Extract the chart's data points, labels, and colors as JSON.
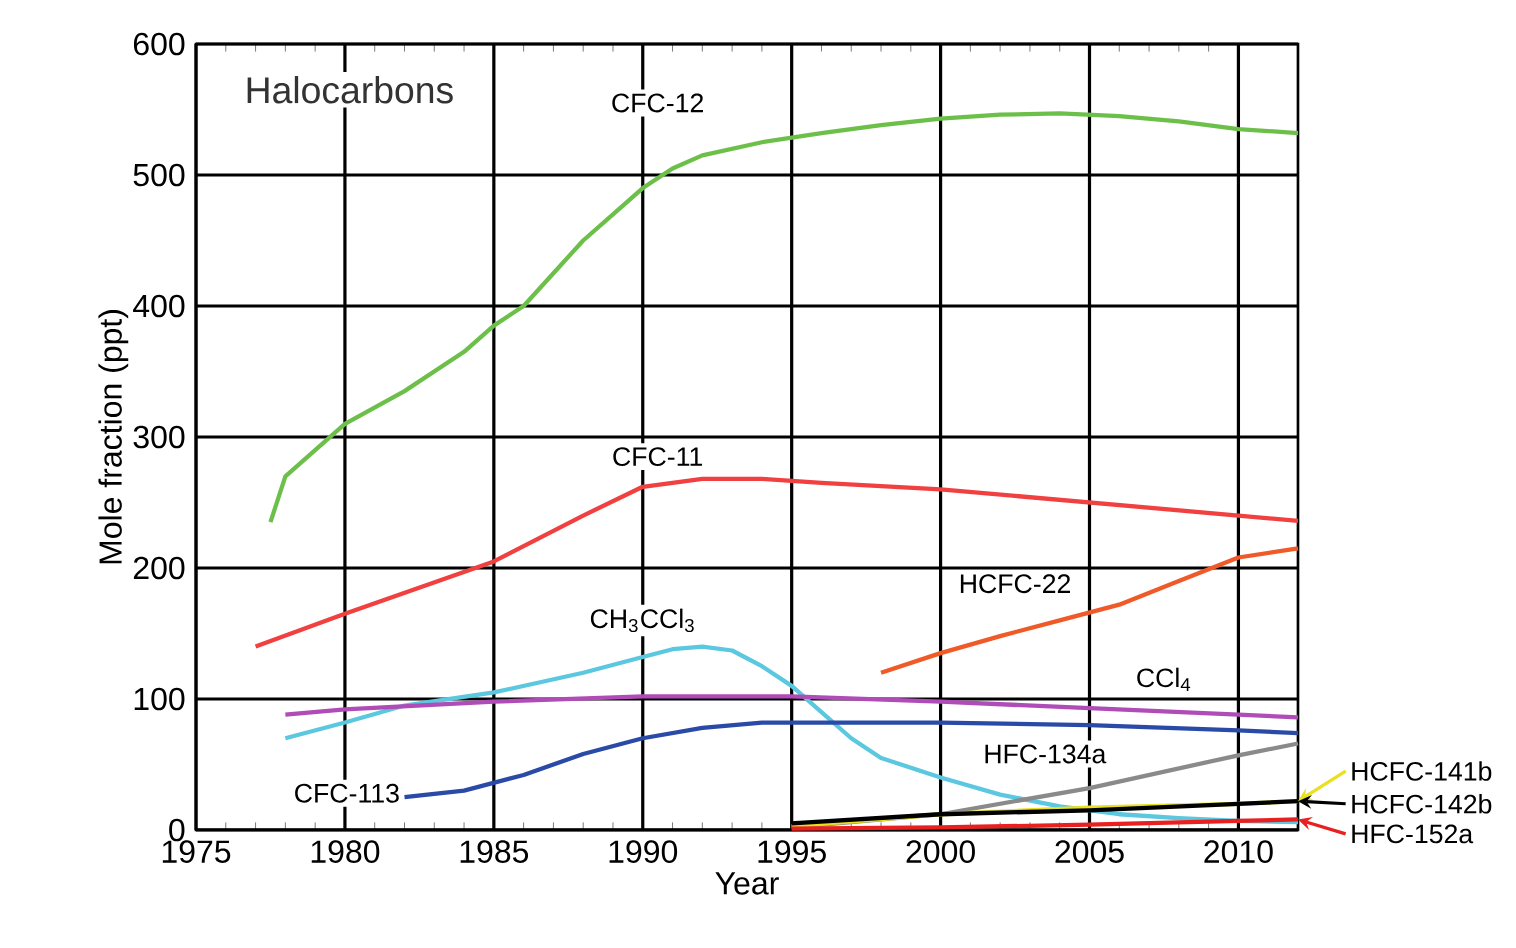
{
  "chart_data": {
    "type": "line",
    "title": "Halocarbons",
    "xlabel": "Year",
    "ylabel": "Mole fraction (ppt)",
    "xlim": [
      1975,
      2012
    ],
    "ylim": [
      0,
      600
    ],
    "xticks": [
      1975,
      1980,
      1985,
      1990,
      1995,
      2000,
      2005,
      2010
    ],
    "yticks": [
      0,
      100,
      200,
      300,
      400,
      500,
      600
    ],
    "grid": true,
    "marker": "none",
    "line_style": "solid",
    "legend": "right",
    "series": [
      {
        "name": "CFC-12",
        "color": "#6cc04a",
        "x": [
          1977.5,
          1978,
          1979,
          1980,
          1982,
          1984,
          1985,
          1986,
          1987,
          1988,
          1989,
          1990,
          1991,
          1992,
          1994,
          1996,
          1998,
          2000,
          2002,
          2004,
          2006,
          2008,
          2010,
          2012
        ],
        "values": [
          235,
          270,
          290,
          310,
          335,
          365,
          385,
          400,
          425,
          450,
          470,
          490,
          505,
          515,
          525,
          532,
          538,
          543,
          546,
          547,
          545,
          541,
          535,
          532
        ]
      },
      {
        "name": "CFC-11",
        "color": "#f04040",
        "x": [
          1977,
          1980,
          1985,
          1988,
          1990,
          1992,
          1994,
          1996,
          2000,
          2005,
          2010,
          2012
        ],
        "values": [
          140,
          165,
          205,
          240,
          262,
          268,
          268,
          265,
          260,
          250,
          240,
          236
        ]
      },
      {
        "name": "HCFC-22",
        "color": "#f05a28",
        "x": [
          1998,
          2000,
          2002,
          2004,
          2006,
          2008,
          2010,
          2012
        ],
        "values": [
          120,
          135,
          148,
          160,
          172,
          190,
          208,
          215
        ]
      },
      {
        "name": "CH$_{3}$CCl$_{3}$",
        "color": "#5bc8e0",
        "x": [
          1978,
          1980,
          1982,
          1985,
          1988,
          1990,
          1991,
          1992,
          1993,
          1994,
          1995,
          1996,
          1997,
          1998,
          2000,
          2002,
          2004,
          2006,
          2008,
          2010,
          2012
        ],
        "values": [
          70,
          82,
          95,
          105,
          120,
          132,
          138,
          140,
          137,
          125,
          110,
          90,
          70,
          55,
          40,
          27,
          18,
          12,
          9,
          7,
          6
        ]
      },
      {
        "name": "CCl$_{4}$",
        "color": "#b04cb8",
        "x": [
          1978,
          1980,
          1985,
          1990,
          1995,
          2000,
          2005,
          2010,
          2012
        ],
        "values": [
          88,
          92,
          98,
          102,
          102,
          98,
          93,
          88,
          86
        ]
      },
      {
        "name": "CFC-113",
        "color": "#2a4aa8",
        "x": [
          1982,
          1984,
          1986,
          1988,
          1990,
          1992,
          1994,
          1996,
          2000,
          2005,
          2010,
          2012
        ],
        "values": [
          25,
          30,
          42,
          58,
          70,
          78,
          82,
          82,
          82,
          80,
          76,
          74
        ]
      },
      {
        "name": "HFC-134a",
        "color": "#8a8a8a",
        "x": [
          1995,
          2000,
          2005,
          2010,
          2012
        ],
        "values": [
          2,
          12,
          32,
          57,
          66
        ]
      },
      {
        "name": "HCFC-141b",
        "color": "#e8e020",
        "x": [
          1995,
          2000,
          2005,
          2010,
          2012
        ],
        "values": [
          3,
          12,
          17,
          20,
          22
        ]
      },
      {
        "name": "HCFC-142b",
        "color": "#000000",
        "x": [
          1995,
          2000,
          2005,
          2010,
          2012
        ],
        "values": [
          5,
          12,
          15,
          20,
          22
        ]
      },
      {
        "name": "HFC-152a",
        "color": "#e82020",
        "x": [
          1995,
          2000,
          2005,
          2010,
          2012
        ],
        "values": [
          1,
          2,
          4,
          7,
          8
        ]
      }
    ]
  }
}
